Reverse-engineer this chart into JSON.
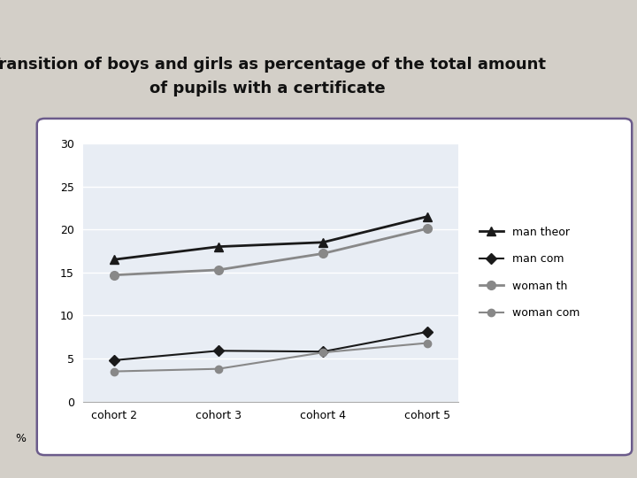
{
  "title_line1": "Transition of boys and girls as percentage of the total amount",
  "title_line2": "of pupils with a certificate",
  "categories": [
    "cohort 2",
    "cohort 3",
    "cohort 4",
    "cohort 5"
  ],
  "series": {
    "man theor": [
      16.5,
      18.0,
      18.5,
      21.5
    ],
    "man com": [
      4.8,
      5.9,
      5.8,
      8.1
    ],
    "woman th": [
      14.7,
      15.3,
      17.2,
      20.1
    ],
    "woman com": [
      3.5,
      3.8,
      5.7,
      6.8
    ]
  },
  "series_styles": {
    "man theor": {
      "color": "#1a1a1a",
      "marker": "^",
      "linestyle": "-",
      "linewidth": 2.0,
      "markersize": 7
    },
    "man com": {
      "color": "#1a1a1a",
      "marker": "D",
      "linestyle": "-",
      "linewidth": 1.5,
      "markersize": 6
    },
    "woman th": {
      "color": "#888888",
      "marker": "o",
      "linestyle": "-",
      "linewidth": 2.0,
      "markersize": 7
    },
    "woman com": {
      "color": "#888888",
      "marker": "o",
      "linestyle": "-",
      "linewidth": 1.5,
      "markersize": 6
    }
  },
  "ylim": [
    0,
    30
  ],
  "yticks": [
    0,
    5,
    10,
    15,
    20,
    25,
    30
  ],
  "ylabel": "%",
  "background_outer": "#d3cfc8",
  "background_chart": "#e8edf4",
  "chart_border_color": "#6b5b8b",
  "title_fontsize": 13,
  "tick_fontsize": 9,
  "legend_fontsize": 9
}
